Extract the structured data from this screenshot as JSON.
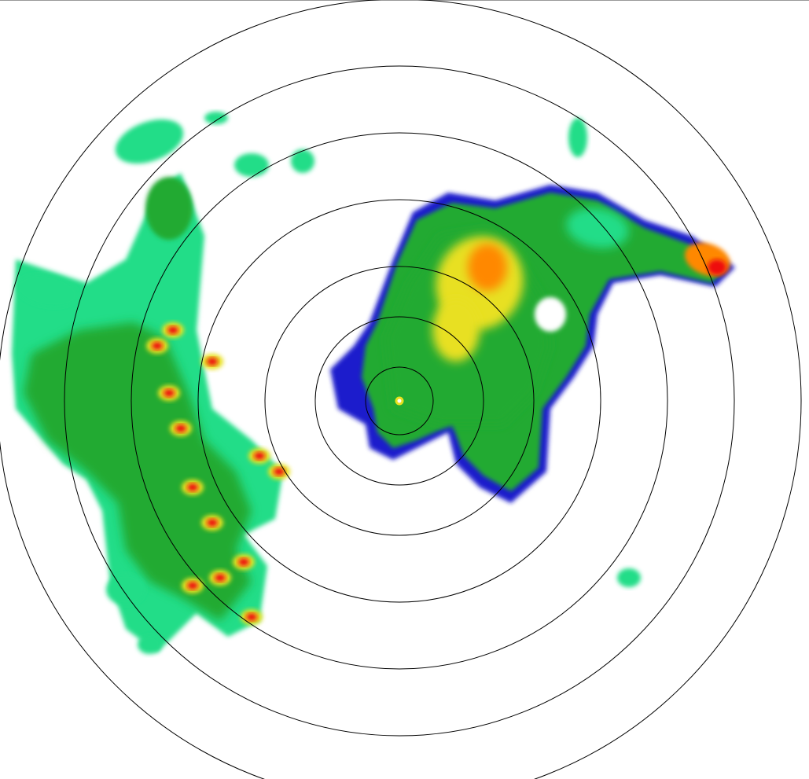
{
  "display": {
    "type": "weather-radar-ppi",
    "range_ring_count": 7,
    "background": "#ffffff",
    "ring_color": "#000000"
  },
  "reflectivity_palette": {
    "weak": "#1a1acc",
    "light": "#22dd88",
    "moderate": "#22aa33",
    "heavy": "#e8e020",
    "intense": "#ff8800",
    "extreme": "#ee1010"
  }
}
